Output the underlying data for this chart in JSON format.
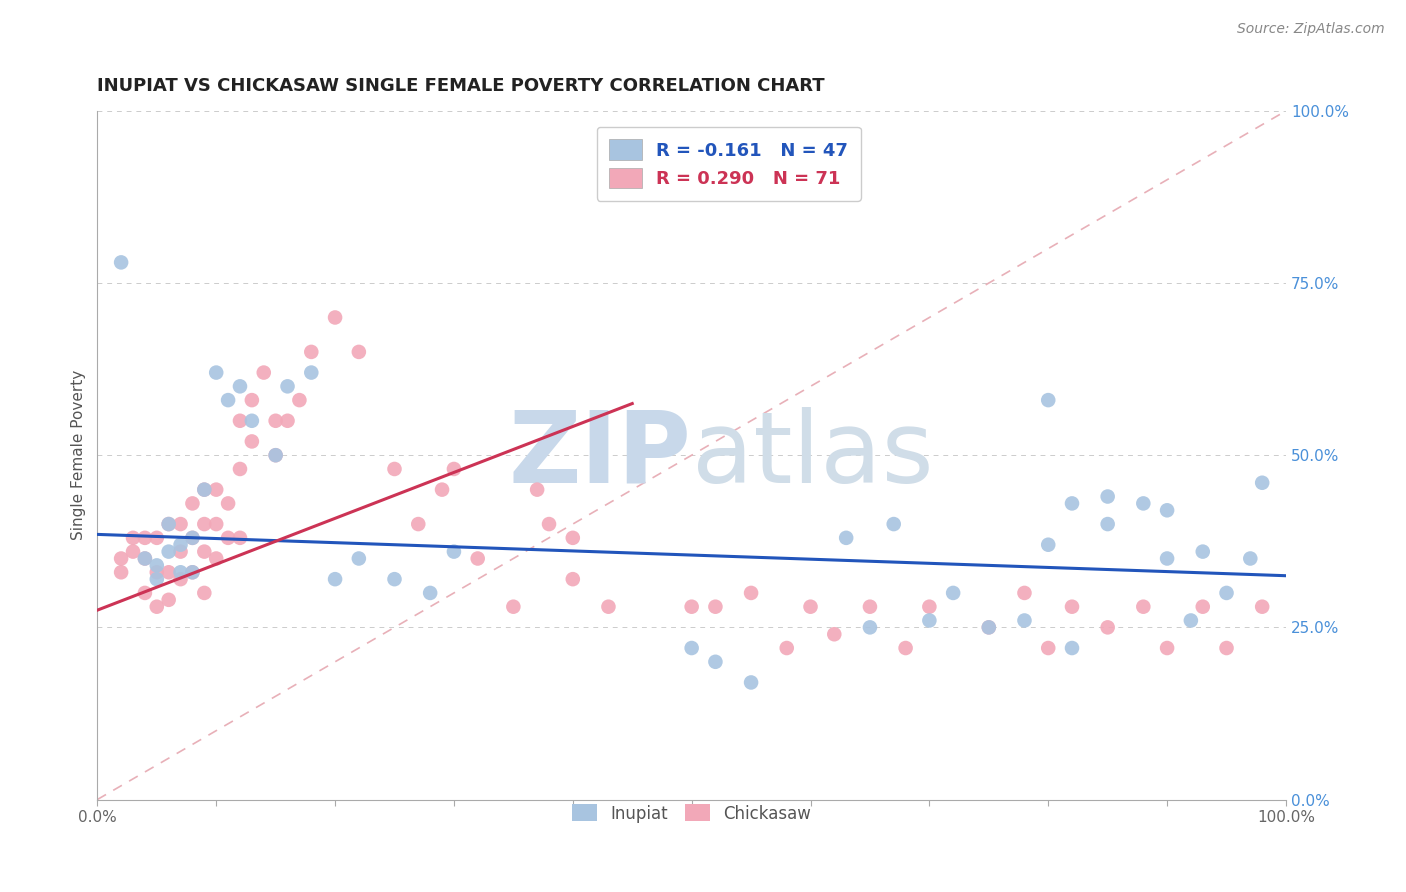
{
  "title": "INUPIAT VS CHICKASAW SINGLE FEMALE POVERTY CORRELATION CHART",
  "source_text": "Source: ZipAtlas.com",
  "ylabel": "Single Female Poverty",
  "right_ytick_labels": [
    "100.0%",
    "75.0%",
    "50.0%",
    "25.0%",
    "0.0%"
  ],
  "right_ytick_values": [
    1.0,
    0.75,
    0.5,
    0.25,
    0.0
  ],
  "xlim": [
    0,
    1.0
  ],
  "ylim": [
    0,
    1.0
  ],
  "inupiat_color": "#a8c4e0",
  "chickasaw_color": "#f2a8b8",
  "inupiat_label": "Inupiat",
  "chickasaw_label": "Chickasaw",
  "blue_line_color": "#2255bb",
  "pink_line_color": "#cc3355",
  "diag_line_color": "#e8b0b8",
  "background_color": "#ffffff",
  "watermark_color": "#c8d8ea",
  "R_inupiat": -0.161,
  "N_inupiat": 47,
  "R_chickasaw": 0.29,
  "N_chickasaw": 71,
  "blue_line_x0": 0.0,
  "blue_line_y0": 0.385,
  "blue_line_x1": 1.0,
  "blue_line_y1": 0.325,
  "pink_line_x0": 0.0,
  "pink_line_y0": 0.275,
  "pink_line_x1": 0.45,
  "pink_line_y1": 0.575,
  "inupiat_x": [
    0.02,
    0.04,
    0.05,
    0.05,
    0.06,
    0.06,
    0.07,
    0.07,
    0.08,
    0.08,
    0.09,
    0.1,
    0.11,
    0.12,
    0.13,
    0.15,
    0.16,
    0.18,
    0.2,
    0.22,
    0.25,
    0.28,
    0.3,
    0.5,
    0.55,
    0.65,
    0.7,
    0.72,
    0.75,
    0.78,
    0.8,
    0.82,
    0.85,
    0.88,
    0.9,
    0.92,
    0.93,
    0.95,
    0.97,
    0.98,
    0.85,
    0.9,
    0.63,
    0.67,
    0.52,
    0.8,
    0.82
  ],
  "inupiat_y": [
    0.78,
    0.35,
    0.34,
    0.32,
    0.4,
    0.36,
    0.37,
    0.33,
    0.38,
    0.33,
    0.45,
    0.62,
    0.58,
    0.6,
    0.55,
    0.5,
    0.6,
    0.62,
    0.32,
    0.35,
    0.32,
    0.3,
    0.36,
    0.22,
    0.17,
    0.25,
    0.26,
    0.3,
    0.25,
    0.26,
    0.58,
    0.43,
    0.44,
    0.43,
    0.35,
    0.26,
    0.36,
    0.3,
    0.35,
    0.46,
    0.4,
    0.42,
    0.38,
    0.4,
    0.2,
    0.37,
    0.22
  ],
  "chickasaw_x": [
    0.02,
    0.02,
    0.03,
    0.03,
    0.04,
    0.04,
    0.04,
    0.05,
    0.05,
    0.05,
    0.06,
    0.06,
    0.06,
    0.07,
    0.07,
    0.07,
    0.08,
    0.08,
    0.08,
    0.09,
    0.09,
    0.09,
    0.09,
    0.1,
    0.1,
    0.1,
    0.11,
    0.11,
    0.12,
    0.12,
    0.12,
    0.13,
    0.13,
    0.14,
    0.15,
    0.15,
    0.16,
    0.17,
    0.18,
    0.2,
    0.22,
    0.25,
    0.27,
    0.29,
    0.3,
    0.32,
    0.35,
    0.4,
    0.43,
    0.5,
    0.52,
    0.55,
    0.58,
    0.6,
    0.62,
    0.65,
    0.68,
    0.7,
    0.75,
    0.78,
    0.8,
    0.82,
    0.85,
    0.88,
    0.9,
    0.93,
    0.95,
    0.98,
    0.37,
    0.38,
    0.4
  ],
  "chickasaw_y": [
    0.35,
    0.33,
    0.38,
    0.36,
    0.3,
    0.35,
    0.38,
    0.28,
    0.33,
    0.38,
    0.29,
    0.33,
    0.4,
    0.32,
    0.36,
    0.4,
    0.33,
    0.38,
    0.43,
    0.3,
    0.36,
    0.4,
    0.45,
    0.35,
    0.4,
    0.45,
    0.38,
    0.43,
    0.38,
    0.48,
    0.55,
    0.52,
    0.58,
    0.62,
    0.5,
    0.55,
    0.55,
    0.58,
    0.65,
    0.7,
    0.65,
    0.48,
    0.4,
    0.45,
    0.48,
    0.35,
    0.28,
    0.32,
    0.28,
    0.28,
    0.28,
    0.3,
    0.22,
    0.28,
    0.24,
    0.28,
    0.22,
    0.28,
    0.25,
    0.3,
    0.22,
    0.28,
    0.25,
    0.28,
    0.22,
    0.28,
    0.22,
    0.28,
    0.45,
    0.4,
    0.38
  ]
}
